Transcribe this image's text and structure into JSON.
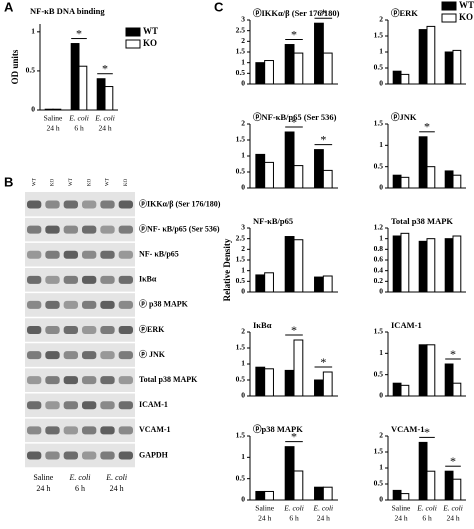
{
  "panel_labels": {
    "a": "A",
    "b": "B",
    "c": "C"
  },
  "shared_ylabel": "Relative Density",
  "blot": {
    "lanes": [
      "WT",
      "KO",
      "WT",
      "KO",
      "WT",
      "KO"
    ],
    "rows": [
      "ⓟIKKα/β (Ser 176/180)",
      "ⓟNF- κB/p65 (Ser 536)",
      "NF- κB/p65",
      "IκBα",
      "ⓟ p38 MAPK",
      "ⓟERK",
      "ⓟ JNK",
      "Total p38 MAPK",
      "ICAM-1",
      "VCAM-1",
      "GAPDH"
    ],
    "categories": [
      "Saline",
      "E. coli",
      "E. coli"
    ],
    "category_times": [
      "24 h",
      "6 h",
      "24 h"
    ]
  },
  "chart_data": [
    {
      "type": "bar",
      "title": "NF-κB DNA binding",
      "ylabel": "OD units",
      "categories": [
        "Saline",
        "E. coli",
        "E. coli"
      ],
      "category_times": [
        "24 h",
        "6 h",
        "24 h"
      ],
      "series": [
        {
          "name": "WT",
          "color": "#000000",
          "values": [
            0.01,
            0.85,
            0.4
          ]
        },
        {
          "name": "KO",
          "color": "#ffffff",
          "values": [
            0.01,
            0.56,
            0.3
          ]
        }
      ],
      "ylim": [
        0,
        1.1
      ],
      "yticks": [
        0,
        0.5,
        1
      ],
      "annotations": [
        null,
        "*",
        "*"
      ],
      "legend": "right"
    },
    {
      "type": "bar",
      "title": "ⓟIKKα/β (Ser 176/180)",
      "series": [
        {
          "color": "#000000",
          "values": [
            1.0,
            1.85,
            2.85
          ]
        },
        {
          "color": "#ffffff",
          "values": [
            1.1,
            1.45,
            1.45
          ]
        }
      ],
      "ylim": [
        0,
        3
      ],
      "yticks": [
        0,
        0.5,
        1,
        1.5,
        2,
        2.5,
        3
      ],
      "annotations": [
        null,
        "*",
        "*"
      ]
    },
    {
      "type": "bar",
      "title": "ⓟNF-κB/p65 (Ser 536)",
      "series": [
        {
          "color": "#000000",
          "values": [
            1.05,
            1.75,
            1.2
          ]
        },
        {
          "color": "#ffffff",
          "values": [
            0.8,
            0.7,
            0.55
          ]
        }
      ],
      "ylim": [
        0,
        2
      ],
      "yticks": [
        0,
        0.5,
        1,
        1.5,
        2
      ],
      "annotations": [
        null,
        "*",
        "*"
      ]
    },
    {
      "type": "bar",
      "title": "NF-κB/p65",
      "series": [
        {
          "color": "#000000",
          "values": [
            0.8,
            2.6,
            0.7
          ]
        },
        {
          "color": "#ffffff",
          "values": [
            0.9,
            2.45,
            0.75
          ]
        }
      ],
      "ylim": [
        0,
        3
      ],
      "yticks": [
        0,
        0.5,
        1,
        1.5,
        2,
        2.5,
        3
      ],
      "annotations": [
        null,
        null,
        null
      ]
    },
    {
      "type": "bar",
      "title": "IκBα",
      "series": [
        {
          "color": "#000000",
          "values": [
            0.9,
            0.8,
            0.5
          ]
        },
        {
          "color": "#ffffff",
          "values": [
            0.85,
            1.75,
            0.75
          ]
        }
      ],
      "ylim": [
        0,
        2
      ],
      "yticks": [
        0,
        0.5,
        1,
        1.5,
        2
      ],
      "annotations": [
        null,
        "*",
        "*"
      ]
    },
    {
      "type": "bar",
      "title": "ⓟp38 MAPK",
      "categories": [
        "Saline",
        "E. coli",
        "E. coli"
      ],
      "category_times": [
        "24 h",
        "6 h",
        "24 h"
      ],
      "series": [
        {
          "color": "#000000",
          "values": [
            0.2,
            1.25,
            0.3
          ]
        },
        {
          "color": "#ffffff",
          "values": [
            0.2,
            0.68,
            0.3
          ]
        }
      ],
      "ylim": [
        0,
        1.5
      ],
      "yticks": [
        0,
        0.5,
        1,
        1.5
      ],
      "annotations": [
        null,
        "*",
        null
      ]
    },
    {
      "type": "bar",
      "title": "ⓟERK",
      "series": [
        {
          "name": "WT",
          "color": "#000000",
          "values": [
            0.4,
            1.7,
            1.0
          ]
        },
        {
          "name": "KO",
          "color": "#ffffff",
          "values": [
            0.3,
            1.8,
            1.05
          ]
        }
      ],
      "ylim": [
        0,
        2
      ],
      "yticks": [
        0,
        0.5,
        1,
        1.5,
        2
      ],
      "annotations": [
        null,
        null,
        null
      ],
      "legend": "top-right"
    },
    {
      "type": "bar",
      "title": "ⓟJNK",
      "series": [
        {
          "color": "#000000",
          "values": [
            0.3,
            1.2,
            0.4
          ]
        },
        {
          "color": "#ffffff",
          "values": [
            0.25,
            0.5,
            0.3
          ]
        }
      ],
      "ylim": [
        0,
        1.5
      ],
      "yticks": [
        0,
        0.5,
        1,
        1.5
      ],
      "annotations": [
        null,
        "*",
        null
      ]
    },
    {
      "type": "bar",
      "title": "Total p38 MAPK",
      "series": [
        {
          "color": "#000000",
          "values": [
            1.05,
            0.95,
            1.0
          ]
        },
        {
          "color": "#ffffff",
          "values": [
            1.1,
            1.0,
            1.05
          ]
        }
      ],
      "ylim": [
        0,
        1.2
      ],
      "yticks": [
        0,
        0.2,
        0.4,
        0.6,
        0.8,
        1,
        1.2
      ],
      "annotations": [
        null,
        null,
        null
      ]
    },
    {
      "type": "bar",
      "title": "ICAM-1",
      "series": [
        {
          "color": "#000000",
          "values": [
            0.3,
            1.2,
            0.75
          ]
        },
        {
          "color": "#ffffff",
          "values": [
            0.25,
            1.2,
            0.3
          ]
        }
      ],
      "ylim": [
        0,
        1.5
      ],
      "yticks": [
        0,
        0.5,
        1,
        1.5
      ],
      "annotations": [
        null,
        null,
        "*"
      ]
    },
    {
      "type": "bar",
      "title": "VCAM-1",
      "categories": [
        "Saline",
        "E. coli",
        "E. coli"
      ],
      "category_times": [
        "24 h",
        "6 h",
        "24 h"
      ],
      "series": [
        {
          "color": "#000000",
          "values": [
            0.3,
            1.8,
            0.9
          ]
        },
        {
          "color": "#ffffff",
          "values": [
            0.2,
            0.9,
            0.65
          ]
        }
      ],
      "ylim": [
        0,
        2
      ],
      "yticks": [
        0,
        0.5,
        1,
        1.5,
        2
      ],
      "annotations": [
        null,
        "*",
        "*"
      ]
    }
  ]
}
